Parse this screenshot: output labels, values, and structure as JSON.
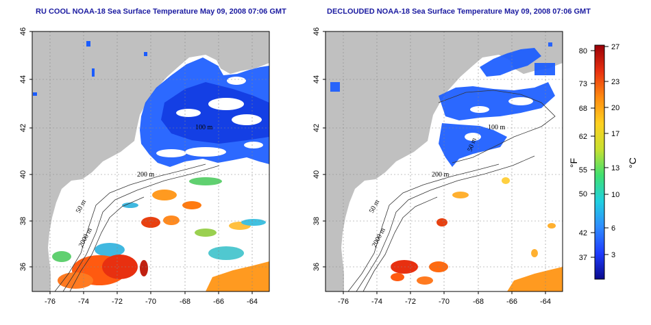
{
  "maps": [
    {
      "title": "RU COOL NOAA-18 Sea Surface Temperature May 09, 2008 07:06 GMT",
      "x_ticks": [
        "-76",
        "-74",
        "-72",
        "-70",
        "-68",
        "-66",
        "-64"
      ],
      "y_ticks": [
        "36",
        "38",
        "40",
        "42",
        "44",
        "46"
      ],
      "contour_labels": [
        "200 m",
        "50 m",
        "2000 m",
        "100 m"
      ]
    },
    {
      "title": "DECLOUDED NOAA-18 Sea Surface Temperature May 09, 2008 07:06 GMT",
      "x_ticks": [
        "-76",
        "-74",
        "-72",
        "-70",
        "-68",
        "-66",
        "-64"
      ],
      "y_ticks": [
        "36",
        "38",
        "40",
        "42",
        "44",
        "46"
      ],
      "contour_labels": [
        "200 m",
        "50 m",
        "2000 m",
        "100 m",
        "50 m"
      ]
    }
  ],
  "colorbar": {
    "fahrenheit_ticks": [
      "80",
      "73",
      "68",
      "62",
      "55",
      "50",
      "42",
      "37"
    ],
    "celsius_ticks": [
      "27",
      "23",
      "20",
      "17",
      "13",
      "10",
      "6",
      "3"
    ],
    "fahrenheit_unit": "°F",
    "celsius_unit": "°C",
    "gradient": [
      "#0a0a8c",
      "#1e3cff",
      "#2f8cff",
      "#20d0e0",
      "#40e070",
      "#c8e030",
      "#ffd020",
      "#ff8a10",
      "#e83010",
      "#9a0008"
    ]
  },
  "colors": {
    "land": "#c0c0c0",
    "cloud": "#ffffff",
    "cold": "#1a5cff",
    "warm": "#ff5a10",
    "title": "#1a1aa0"
  }
}
